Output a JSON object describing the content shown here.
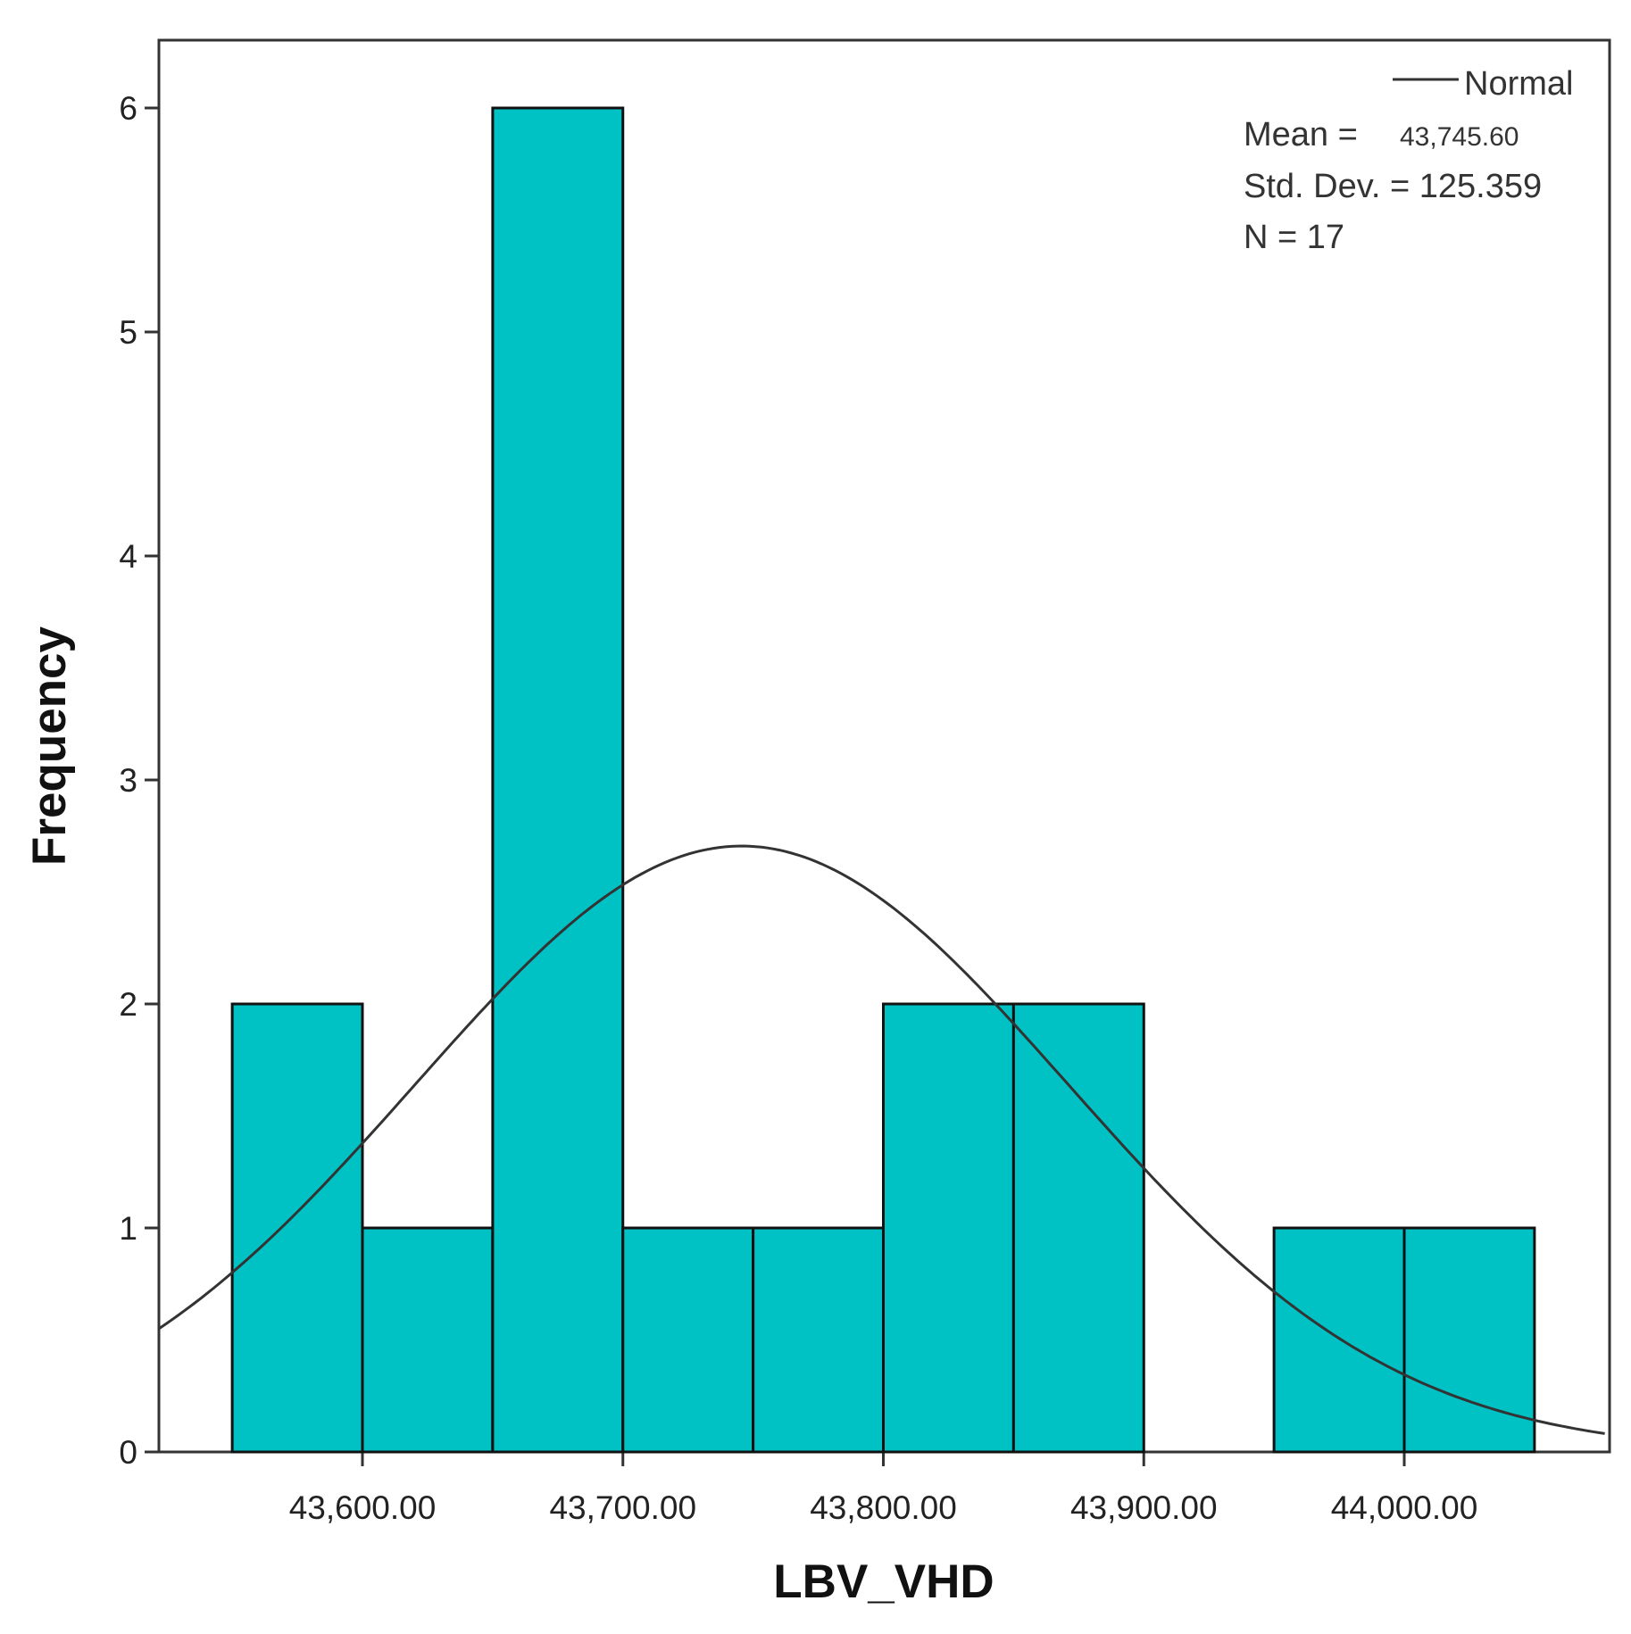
{
  "chart_data": {
    "type": "bar",
    "subtype": "histogram",
    "xlabel": "LBV_VHD",
    "ylabel": "Frequency",
    "x_tick_labels": [
      "43,600.00",
      "43,700.00",
      "43,800.00",
      "43,900.00",
      "44,000.00"
    ],
    "x_ticks": [
      43600,
      43700,
      43800,
      43900,
      44000
    ],
    "y_tick_labels": [
      "0",
      "1",
      "2",
      "3",
      "4",
      "5",
      "6"
    ],
    "y_ticks": [
      0,
      1,
      2,
      3,
      4,
      5,
      6
    ],
    "xlim": [
      43522,
      44077
    ],
    "ylim": [
      0,
      6.3
    ],
    "bin_width": 50,
    "bins": [
      {
        "start": 43550,
        "end": 43600,
        "count": 2
      },
      {
        "start": 43600,
        "end": 43650,
        "count": 1
      },
      {
        "start": 43650,
        "end": 43700,
        "count": 6
      },
      {
        "start": 43700,
        "end": 43750,
        "count": 1
      },
      {
        "start": 43750,
        "end": 43800,
        "count": 1
      },
      {
        "start": 43800,
        "end": 43850,
        "count": 2
      },
      {
        "start": 43850,
        "end": 43900,
        "count": 2
      },
      {
        "start": 43950,
        "end": 44000,
        "count": 1
      },
      {
        "start": 44000,
        "end": 44050,
        "count": 1
      }
    ],
    "normal_curve": {
      "mean": 43745.6,
      "std": 125.359,
      "n": 17
    },
    "legend": {
      "label": "Normal",
      "position": "top-right"
    },
    "stats": {
      "mean_label": "Mean =",
      "mean_value": "43,745.60",
      "std_text": "Std. Dev. = 125.359",
      "n_text": "N = 17"
    },
    "colors": {
      "bar_fill": "#00C2C4",
      "bar_stroke": "#111111",
      "curve": "#333333",
      "frame": "#333333"
    }
  }
}
